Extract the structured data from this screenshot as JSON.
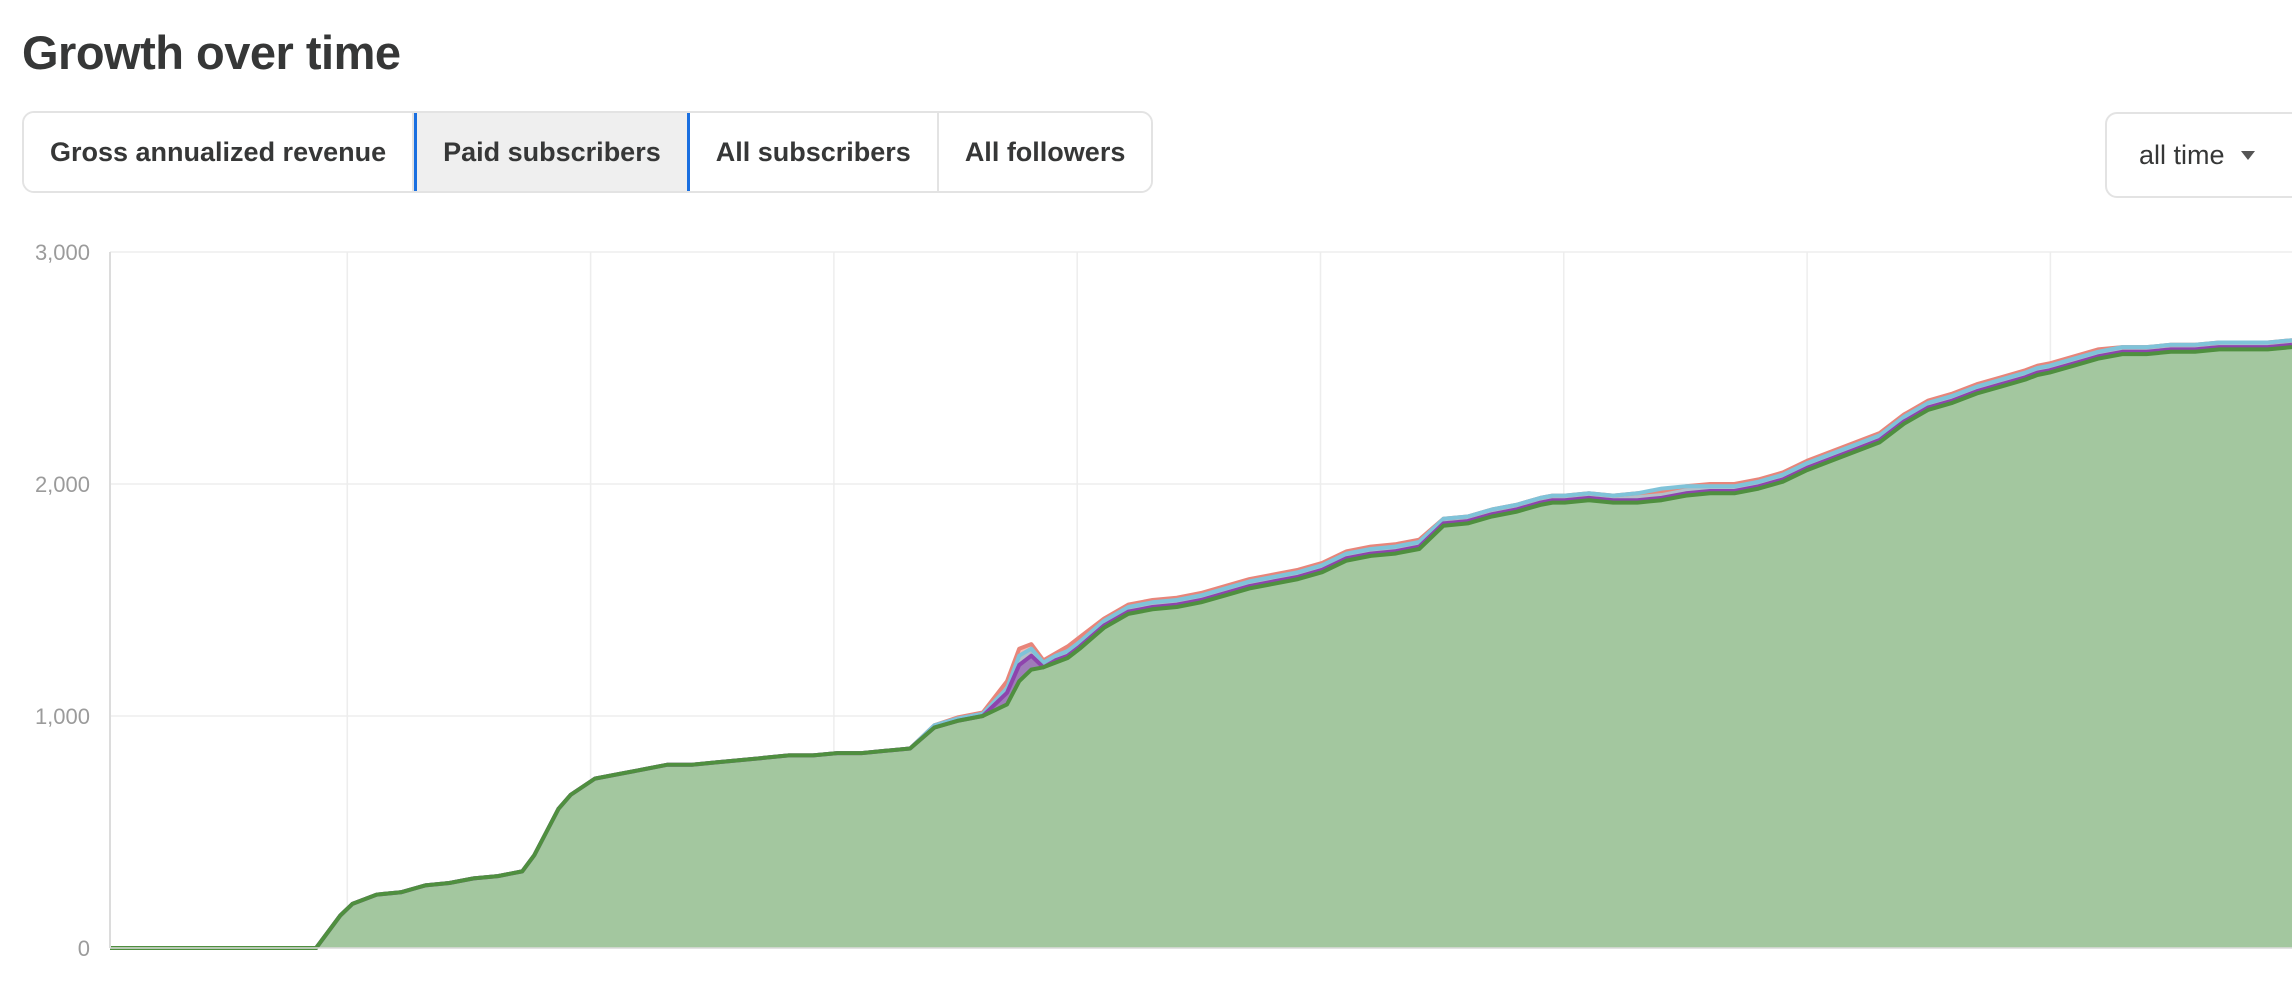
{
  "header": {
    "title": "Growth over time"
  },
  "tabs": [
    {
      "label": "Gross annualized revenue",
      "active": false
    },
    {
      "label": "Paid subscribers",
      "active": true
    },
    {
      "label": "All subscribers",
      "active": false
    },
    {
      "label": "All followers",
      "active": false
    }
  ],
  "range_select": {
    "value": "all time",
    "icon": "caret-down-icon"
  },
  "chart_data": {
    "type": "area",
    "title": "",
    "xlabel": "",
    "ylabel": "",
    "ylim": [
      0,
      3000
    ],
    "yticks": [
      {
        "value": 0,
        "label": "0"
      },
      {
        "value": 1000,
        "label": "1,000"
      },
      {
        "value": 2000,
        "label": "2,000"
      },
      {
        "value": 3000,
        "label": "3,000"
      }
    ],
    "grid": true,
    "x_vertical_gridlines": 9,
    "x": [
      0,
      8.5,
      9.5,
      10,
      11,
      12,
      13,
      14,
      15,
      16,
      17,
      17.5,
      18,
      18.5,
      19,
      20,
      21,
      22,
      23,
      24,
      25,
      26,
      27,
      28,
      29,
      30,
      31,
      32,
      33,
      34,
      35,
      36,
      37,
      37.5,
      38,
      38.5,
      39,
      39.5,
      40,
      41,
      42,
      43,
      44,
      45,
      46,
      47,
      48,
      49,
      50,
      51,
      52,
      53,
      54,
      55,
      56,
      57,
      58,
      59,
      59.5,
      60,
      61,
      62,
      63,
      64,
      65,
      66,
      67,
      68,
      69,
      70,
      71,
      72,
      73,
      74,
      75,
      76,
      77,
      78,
      79,
      79.5,
      80,
      81,
      82,
      83,
      84,
      85,
      86,
      87,
      88,
      89,
      90
    ],
    "series": [
      {
        "color": "#4f8f3f",
        "fill": "#a3c79f",
        "values": [
          0,
          0,
          140,
          190,
          230,
          240,
          270,
          280,
          300,
          310,
          330,
          400,
          500,
          600,
          660,
          730,
          750,
          770,
          790,
          790,
          800,
          810,
          820,
          830,
          830,
          840,
          840,
          850,
          860,
          950,
          980,
          1000,
          1050,
          1150,
          1200,
          1210,
          1230,
          1250,
          1290,
          1380,
          1440,
          1460,
          1470,
          1490,
          1520,
          1550,
          1570,
          1590,
          1620,
          1670,
          1690,
          1700,
          1720,
          1820,
          1830,
          1860,
          1880,
          1910,
          1920,
          1920,
          1930,
          1920,
          1920,
          1930,
          1950,
          1960,
          1960,
          1980,
          2010,
          2060,
          2100,
          2140,
          2180,
          2260,
          2320,
          2350,
          2390,
          2420,
          2450,
          2470,
          2480,
          2510,
          2540,
          2560,
          2560,
          2570,
          2570,
          2580,
          2580,
          2580,
          2590
        ]
      },
      {
        "color": "#8e44ad",
        "values": [
          0,
          0,
          140,
          190,
          230,
          240,
          270,
          280,
          300,
          310,
          330,
          400,
          500,
          600,
          660,
          730,
          750,
          770,
          790,
          790,
          800,
          810,
          820,
          830,
          830,
          840,
          840,
          850,
          860,
          950,
          980,
          1000,
          1100,
          1220,
          1260,
          1210,
          1240,
          1260,
          1300,
          1390,
          1450,
          1470,
          1480,
          1500,
          1530,
          1560,
          1580,
          1600,
          1630,
          1680,
          1700,
          1710,
          1730,
          1830,
          1840,
          1870,
          1890,
          1920,
          1930,
          1930,
          1940,
          1930,
          1930,
          1940,
          1960,
          1970,
          1970,
          1990,
          2020,
          2070,
          2110,
          2150,
          2190,
          2270,
          2330,
          2360,
          2400,
          2430,
          2460,
          2480,
          2490,
          2520,
          2550,
          2570,
          2570,
          2580,
          2580,
          2590,
          2590,
          2590,
          2600
        ]
      },
      {
        "color": "#7fc3d9",
        "values": [
          0,
          0,
          140,
          190,
          230,
          240,
          270,
          280,
          300,
          310,
          330,
          400,
          500,
          600,
          660,
          730,
          750,
          770,
          790,
          790,
          800,
          810,
          820,
          830,
          830,
          840,
          840,
          850,
          860,
          960,
          990,
          1010,
          1120,
          1260,
          1290,
          1230,
          1260,
          1280,
          1320,
          1410,
          1470,
          1490,
          1500,
          1520,
          1550,
          1580,
          1600,
          1620,
          1650,
          1700,
          1720,
          1730,
          1750,
          1850,
          1860,
          1890,
          1910,
          1940,
          1950,
          1950,
          1960,
          1950,
          1960,
          1980,
          1990,
          1990,
          1990,
          2010,
          2040,
          2090,
          2130,
          2170,
          2210,
          2290,
          2350,
          2380,
          2420,
          2450,
          2480,
          2500,
          2510,
          2540,
          2570,
          2590,
          2590,
          2600,
          2600,
          2610,
          2610,
          2610,
          2620
        ]
      },
      {
        "color": "#e8857a",
        "values": [
          0,
          0,
          140,
          190,
          230,
          240,
          270,
          280,
          300,
          310,
          330,
          400,
          500,
          600,
          660,
          730,
          750,
          770,
          790,
          790,
          800,
          810,
          820,
          830,
          830,
          840,
          840,
          850,
          860,
          960,
          995,
          1015,
          1150,
          1290,
          1310,
          1240,
          1270,
          1300,
          1340,
          1420,
          1480,
          1500,
          1510,
          1530,
          1560,
          1590,
          1610,
          1630,
          1660,
          1710,
          1730,
          1740,
          1760,
          1850,
          1860,
          1890,
          1910,
          1940,
          1950,
          1950,
          1960,
          1950,
          1960,
          1970,
          1990,
          2000,
          2000,
          2020,
          2050,
          2100,
          2140,
          2180,
          2220,
          2300,
          2360,
          2390,
          2430,
          2460,
          2490,
          2510,
          2520,
          2550,
          2580,
          2590,
          2590,
          2600,
          2600,
          2610,
          2610,
          2610,
          2620
        ]
      }
    ]
  }
}
